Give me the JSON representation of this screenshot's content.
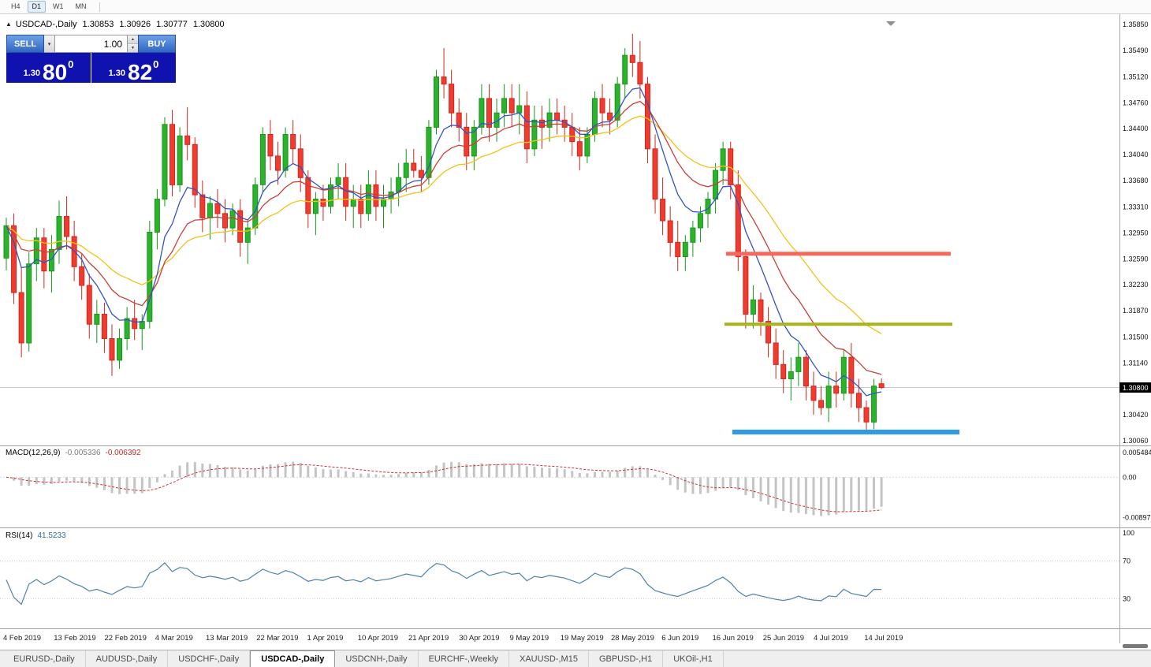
{
  "toolbar": {
    "timeframes": [
      "H4",
      "D1",
      "W1",
      "MN"
    ],
    "active_timeframe": "D1"
  },
  "icons": {
    "collapse_triangle": "▲",
    "dropdown_caret": "▾",
    "spinner_up": "▲",
    "spinner_down": "▼"
  },
  "chart_header": {
    "symbol": "USDCAD-,Daily",
    "open": "1.30853",
    "high": "1.30926",
    "low": "1.30777",
    "close": "1.30800"
  },
  "trade_panel": {
    "sell_label": "SELL",
    "buy_label": "BUY",
    "volume": "1.00",
    "sell_price": {
      "prefix": "1.30",
      "pips": "80",
      "point": "0"
    },
    "buy_price": {
      "prefix": "1.30",
      "pips": "82",
      "point": "0"
    }
  },
  "price_axis": {
    "labels": [
      "1.35850",
      "1.35490",
      "1.35120",
      "1.34760",
      "1.34400",
      "1.34040",
      "1.33680",
      "1.33310",
      "1.32950",
      "1.32590",
      "1.32230",
      "1.31870",
      "1.31500",
      "1.31140",
      "1.30420",
      "1.30060"
    ],
    "current_price_label": "1.30800"
  },
  "macd_panel": {
    "title": "MACD(12,26,9)",
    "main_value": "-0.005336",
    "signal_value": "-0.006392",
    "axis_labels": [
      {
        "text": "0.005484",
        "value": 0.005484
      },
      {
        "text": "0.00",
        "value": 0
      },
      {
        "text": "-0.008975",
        "value": -0.008975
      }
    ]
  },
  "rsi_panel": {
    "title": "RSI(14)",
    "value": "41.5233",
    "axis_labels": [
      {
        "text": "100",
        "value": 100
      },
      {
        "text": "70",
        "value": 70
      },
      {
        "text": "30",
        "value": 30
      }
    ]
  },
  "tabs": [
    {
      "label": "EURUSD-,Daily",
      "active": false
    },
    {
      "label": "AUDUSD-,Daily",
      "active": false
    },
    {
      "label": "USDCHF-,Daily",
      "active": false
    },
    {
      "label": "USDCAD-,Daily",
      "active": true
    },
    {
      "label": "USDCNH-,Daily",
      "active": false
    },
    {
      "label": "EURCHF-,Weekly",
      "active": false
    },
    {
      "label": "XAUUSD-,M15",
      "active": false
    },
    {
      "label": "GBPUSD-,H1",
      "active": false
    },
    {
      "label": "UKOil-,H1",
      "active": false
    }
  ],
  "chart_data": {
    "type": "candlestick",
    "title": "USDCAD Daily",
    "price_range": [
      1.30016,
      1.35916
    ],
    "current_price": 1.308,
    "x_tick_labels": [
      "4 Feb 2019",
      "13 Feb 2019",
      "22 Feb 2019",
      "4 Mar 2019",
      "13 Mar 2019",
      "22 Mar 2019",
      "1 Apr 2019",
      "10 Apr 2019",
      "21 Apr 2019",
      "30 Apr 2019",
      "9 May 2019",
      "19 May 2019",
      "28 May 2019",
      "6 Jun 2019",
      "16 Jun 2019",
      "25 Jun 2019",
      "4 Jul 2019",
      "14 Jul 2019"
    ],
    "candles": [
      [
        1.326,
        1.3316,
        1.3243,
        1.3305
      ],
      [
        1.3305,
        1.3322,
        1.3196,
        1.3212
      ],
      [
        1.3212,
        1.3248,
        1.3122,
        1.3142
      ],
      [
        1.3142,
        1.3268,
        1.313,
        1.3252
      ],
      [
        1.3252,
        1.3302,
        1.3228,
        1.3288
      ],
      [
        1.3288,
        1.3302,
        1.3218,
        1.3242
      ],
      [
        1.3242,
        1.3292,
        1.3212,
        1.3272
      ],
      [
        1.3272,
        1.334,
        1.3252,
        1.3318
      ],
      [
        1.3318,
        1.3346,
        1.3272,
        1.329
      ],
      [
        1.329,
        1.3312,
        1.3228,
        1.3248
      ],
      [
        1.3248,
        1.3266,
        1.3202,
        1.3222
      ],
      [
        1.3222,
        1.3238,
        1.3148,
        1.3168
      ],
      [
        1.3168,
        1.3202,
        1.3142,
        1.3182
      ],
      [
        1.3182,
        1.3198,
        1.3128,
        1.3148
      ],
      [
        1.3148,
        1.3168,
        1.3096,
        1.3118
      ],
      [
        1.3118,
        1.3162,
        1.3106,
        1.3148
      ],
      [
        1.3148,
        1.3192,
        1.3132,
        1.3176
      ],
      [
        1.3176,
        1.3202,
        1.3146,
        1.3162
      ],
      [
        1.3162,
        1.3182,
        1.3132,
        1.3172
      ],
      [
        1.3172,
        1.3312,
        1.3162,
        1.3296
      ],
      [
        1.3296,
        1.3356,
        1.3272,
        1.3342
      ],
      [
        1.3342,
        1.3456,
        1.3332,
        1.3446
      ],
      [
        1.3446,
        1.3466,
        1.3346,
        1.3362
      ],
      [
        1.3362,
        1.3442,
        1.3352,
        1.343
      ],
      [
        1.343,
        1.347,
        1.3396,
        1.3418
      ],
      [
        1.3418,
        1.3428,
        1.333,
        1.3348
      ],
      [
        1.3348,
        1.3368,
        1.3296,
        1.3316
      ],
      [
        1.3316,
        1.3346,
        1.3286,
        1.3336
      ],
      [
        1.3336,
        1.3356,
        1.3302,
        1.3322
      ],
      [
        1.3322,
        1.3342,
        1.3282,
        1.3302
      ],
      [
        1.3302,
        1.3336,
        1.3292,
        1.3326
      ],
      [
        1.3326,
        1.3342,
        1.3262,
        1.3282
      ],
      [
        1.3282,
        1.3312,
        1.3252,
        1.3302
      ],
      [
        1.3302,
        1.3372,
        1.3292,
        1.3362
      ],
      [
        1.3362,
        1.3442,
        1.3352,
        1.3432
      ],
      [
        1.3432,
        1.3452,
        1.3382,
        1.3402
      ],
      [
        1.3402,
        1.3422,
        1.3362,
        1.3382
      ],
      [
        1.3382,
        1.3442,
        1.3372,
        1.3432
      ],
      [
        1.3432,
        1.3452,
        1.3392,
        1.3412
      ],
      [
        1.3412,
        1.3432,
        1.3352,
        1.3372
      ],
      [
        1.3372,
        1.3382,
        1.3302,
        1.3322
      ],
      [
        1.3322,
        1.3352,
        1.3292,
        1.3342
      ],
      [
        1.3342,
        1.3362,
        1.3312,
        1.3332
      ],
      [
        1.3332,
        1.3372,
        1.3322,
        1.3362
      ],
      [
        1.3362,
        1.3392,
        1.3342,
        1.3372
      ],
      [
        1.3372,
        1.3392,
        1.3312,
        1.3332
      ],
      [
        1.3332,
        1.3362,
        1.3302,
        1.3342
      ],
      [
        1.3342,
        1.3362,
        1.3302,
        1.3322
      ],
      [
        1.3322,
        1.3382,
        1.3312,
        1.3362
      ],
      [
        1.3362,
        1.3382,
        1.3312,
        1.3332
      ],
      [
        1.3332,
        1.3362,
        1.3302,
        1.3342
      ],
      [
        1.3342,
        1.3372,
        1.3322,
        1.3352
      ],
      [
        1.3352,
        1.3392,
        1.3332,
        1.3372
      ],
      [
        1.3372,
        1.3412,
        1.3352,
        1.3392
      ],
      [
        1.3392,
        1.3412,
        1.3372,
        1.3382
      ],
      [
        1.3382,
        1.3402,
        1.3352,
        1.3372
      ],
      [
        1.3372,
        1.3452,
        1.3362,
        1.3442
      ],
      [
        1.3442,
        1.3522,
        1.3432,
        1.3512
      ],
      [
        1.3512,
        1.3552,
        1.3482,
        1.3502
      ],
      [
        1.3502,
        1.3522,
        1.3442,
        1.3462
      ],
      [
        1.3462,
        1.3482,
        1.3422,
        1.3442
      ],
      [
        1.3442,
        1.3462,
        1.3382,
        1.3402
      ],
      [
        1.3402,
        1.3452,
        1.3382,
        1.3442
      ],
      [
        1.3442,
        1.3502,
        1.3432,
        1.3482
      ],
      [
        1.3482,
        1.3502,
        1.3422,
        1.3442
      ],
      [
        1.3442,
        1.3482,
        1.3422,
        1.3462
      ],
      [
        1.3462,
        1.3502,
        1.3442,
        1.3482
      ],
      [
        1.3482,
        1.3502,
        1.3442,
        1.3462
      ],
      [
        1.3462,
        1.3502,
        1.3432,
        1.3472
      ],
      [
        1.3472,
        1.3492,
        1.3392,
        1.3412
      ],
      [
        1.3412,
        1.3472,
        1.3402,
        1.3452
      ],
      [
        1.3452,
        1.3472,
        1.3412,
        1.3442
      ],
      [
        1.3442,
        1.3482,
        1.3422,
        1.3462
      ],
      [
        1.3462,
        1.3482,
        1.3432,
        1.3452
      ],
      [
        1.3452,
        1.3472,
        1.3422,
        1.3442
      ],
      [
        1.3442,
        1.3462,
        1.3402,
        1.3422
      ],
      [
        1.3422,
        1.3442,
        1.3382,
        1.3402
      ],
      [
        1.3402,
        1.3442,
        1.3392,
        1.3432
      ],
      [
        1.3432,
        1.3492,
        1.3422,
        1.3482
      ],
      [
        1.3482,
        1.3502,
        1.3442,
        1.3462
      ],
      [
        1.3462,
        1.3482,
        1.3432,
        1.3452
      ],
      [
        1.3452,
        1.3512,
        1.3442,
        1.3502
      ],
      [
        1.3502,
        1.3552,
        1.3482,
        1.3542
      ],
      [
        1.3542,
        1.3572,
        1.3512,
        1.3532
      ],
      [
        1.3532,
        1.3562,
        1.3482,
        1.3502
      ],
      [
        1.3502,
        1.3512,
        1.3392,
        1.3412
      ],
      [
        1.3412,
        1.3432,
        1.3322,
        1.3342
      ],
      [
        1.3342,
        1.3372,
        1.3292,
        1.3312
      ],
      [
        1.3312,
        1.3332,
        1.3262,
        1.3282
      ],
      [
        1.3282,
        1.3312,
        1.3242,
        1.3262
      ],
      [
        1.3262,
        1.3292,
        1.3242,
        1.3282
      ],
      [
        1.3282,
        1.3312,
        1.3262,
        1.3302
      ],
      [
        1.3302,
        1.3332,
        1.3282,
        1.3322
      ],
      [
        1.3322,
        1.3352,
        1.3302,
        1.3342
      ],
      [
        1.3342,
        1.3392,
        1.3322,
        1.3382
      ],
      [
        1.3382,
        1.3422,
        1.3362,
        1.3412
      ],
      [
        1.3412,
        1.3422,
        1.3342,
        1.3362
      ],
      [
        1.3362,
        1.3382,
        1.3242,
        1.3262
      ],
      [
        1.3262,
        1.3272,
        1.3162,
        1.3182
      ],
      [
        1.3182,
        1.3222,
        1.3162,
        1.3202
      ],
      [
        1.3202,
        1.3212,
        1.3152,
        1.3172
      ],
      [
        1.3172,
        1.3192,
        1.3122,
        1.3142
      ],
      [
        1.3142,
        1.3162,
        1.3092,
        1.3112
      ],
      [
        1.3112,
        1.3132,
        1.3072,
        1.3092
      ],
      [
        1.3092,
        1.3122,
        1.3062,
        1.3102
      ],
      [
        1.3102,
        1.3142,
        1.3082,
        1.3122
      ],
      [
        1.3122,
        1.3132,
        1.3062,
        1.3082
      ],
      [
        1.3082,
        1.3102,
        1.3042,
        1.3062
      ],
      [
        1.3062,
        1.3082,
        1.3042,
        1.3052
      ],
      [
        1.3052,
        1.3102,
        1.3032,
        1.3082
      ],
      [
        1.3082,
        1.3102,
        1.3052,
        1.3072
      ],
      [
        1.3072,
        1.3132,
        1.3062,
        1.3122
      ],
      [
        1.3122,
        1.3142,
        1.3052,
        1.3072
      ],
      [
        1.3072,
        1.3092,
        1.3032,
        1.3052
      ],
      [
        1.3052,
        1.3062,
        1.3018,
        1.3032
      ],
      [
        1.3032,
        1.3092,
        1.3022,
        1.3082
      ],
      [
        1.30853,
        1.30926,
        1.30777,
        1.308
      ]
    ],
    "moving_averages": [
      {
        "name": "fast-blue",
        "period": 7,
        "color": "#3353c0"
      },
      {
        "name": "mid-red",
        "period": 14,
        "color": "#c94038"
      },
      {
        "name": "slow-yellow",
        "period": 26,
        "color": "#f2c218"
      }
    ],
    "colors": {
      "bull": "#2db22d",
      "bull_border": "#17971a",
      "bear": "#f03b30",
      "bear_border": "#d2271d",
      "bid_line": "#c8c8c8",
      "price_tag_bg": "#000000",
      "price_tag_text": "#ffffff"
    },
    "hlines": [
      {
        "name": "resistance-line-red",
        "price": 1.3266,
        "color": "#f4695e",
        "thickness": 5,
        "from_idx": 95.4,
        "to_idx": 125.2
      },
      {
        "name": "middle-line-olive",
        "price": 1.3168,
        "color": "#a9b41c",
        "thickness": 4,
        "from_idx": 95.2,
        "to_idx": 125.4
      },
      {
        "name": "support-line-blue",
        "price": 1.3018,
        "color": "#2d9bea",
        "thickness": 6,
        "from_idx": 96.2,
        "to_idx": 126.3
      }
    ],
    "indicators": {
      "macd": {
        "fast": 12,
        "slow": 26,
        "signal": 9,
        "plot_range": [
          -0.0099,
          0.0062
        ],
        "histogram_color": "#c4c4c4",
        "signal_color": "#d03030"
      },
      "rsi": {
        "period": 14,
        "plot_range": [
          0,
          100
        ],
        "line_color": "#4f81b0",
        "levels": [
          70,
          30
        ]
      }
    }
  }
}
